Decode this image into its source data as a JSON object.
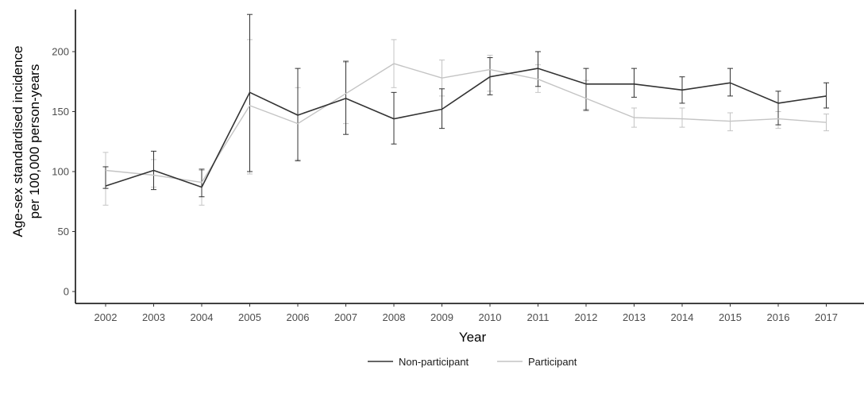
{
  "chart_data": {
    "type": "line",
    "title": "",
    "xlabel": "Year",
    "ylabel_lines": [
      "Age-sex standardised incidence",
      "per 100,000 person-years"
    ],
    "x": [
      "2002",
      "2003",
      "2004",
      "2005",
      "2006",
      "2007",
      "2008",
      "2009",
      "2010",
      "2011",
      "2012",
      "2013",
      "2014",
      "2015",
      "2016",
      "2017"
    ],
    "ylim": [
      0,
      230
    ],
    "yticks": [
      0,
      50,
      100,
      150,
      200
    ],
    "grid": false,
    "legend_position": "bottom",
    "series": [
      {
        "name": "Non-participant",
        "color": "#333333",
        "values": [
          88,
          101,
          87,
          166,
          147,
          161,
          144,
          152,
          179,
          186,
          173,
          173,
          168,
          174,
          157,
          163
        ],
        "err_low": [
          86,
          85,
          79,
          100,
          109,
          131,
          123,
          136,
          164,
          171,
          151,
          162,
          157,
          163,
          139,
          153
        ],
        "err_high": [
          104,
          117,
          102,
          231,
          186,
          192,
          166,
          169,
          195,
          200,
          186,
          186,
          179,
          186,
          167,
          174
        ]
      },
      {
        "name": "Participant",
        "color": "#c4c4c4",
        "values": [
          101,
          97,
          91,
          155,
          140,
          165,
          190,
          178,
          185,
          177,
          161,
          145,
          144,
          142,
          144,
          141
        ],
        "err_low": [
          72,
          87,
          72,
          98,
          110,
          140,
          170,
          163,
          167,
          166,
          152,
          137,
          137,
          134,
          136,
          134
        ],
        "err_high": [
          116,
          110,
          101,
          210,
          170,
          191,
          210,
          193,
          197,
          189,
          176,
          153,
          153,
          149,
          150,
          148
        ]
      }
    ]
  }
}
